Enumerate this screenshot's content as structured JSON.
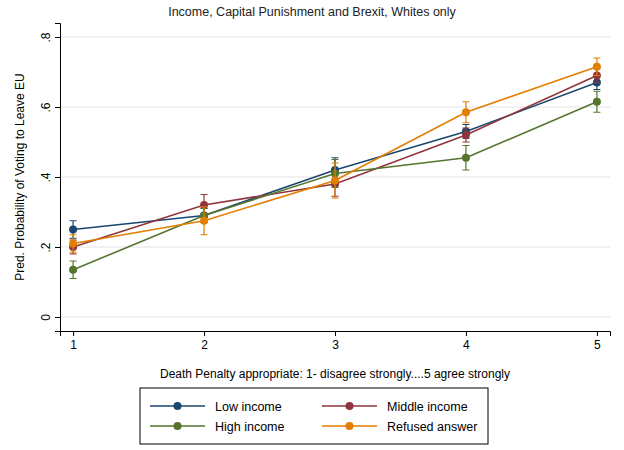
{
  "chart_data": {
    "type": "line",
    "title": "Income, Capital Punishment and Brexit, Whites only",
    "x_label": "Death Penalty appropriate: 1- disagree strongly....5 agree strongly",
    "y_label": "Pred. Probability of Voting to Leave EU",
    "x": [
      1,
      2,
      3,
      4,
      5
    ],
    "xlim": [
      0.9,
      5.1
    ],
    "xticks": [
      1,
      2,
      3,
      4,
      5
    ],
    "ylim": [
      -0.04,
      0.84
    ],
    "yticks": [
      0,
      {
        "value": 0.2,
        "label": ".2"
      },
      {
        "value": 0.4,
        "label": ".4"
      },
      {
        "value": 0.6,
        "label": ".6"
      },
      {
        "value": 0.8,
        "label": ".8"
      }
    ],
    "grid": true,
    "legend": "bottom",
    "marker": "circle",
    "line_style": "solid",
    "series": [
      {
        "name": "Low income",
        "color": "#1a476f",
        "values": [
          0.25,
          0.29,
          0.42,
          0.53,
          0.67
        ],
        "errors": [
          0.025,
          0.02,
          0.035,
          0.02,
          0.02
        ]
      },
      {
        "name": "Middle income",
        "color": "#90353b",
        "values": [
          0.2,
          0.32,
          0.38,
          0.52,
          0.69
        ],
        "errors": [
          0.02,
          0.03,
          0.035,
          0.02,
          0.02
        ]
      },
      {
        "name": "High income",
        "color": "#55752f",
        "values": [
          0.135,
          0.29,
          0.41,
          0.455,
          0.615
        ],
        "errors": [
          0.025,
          0.02,
          0.04,
          0.035,
          0.03
        ]
      },
      {
        "name": "Refused answer",
        "color": "#e37e00",
        "values": [
          0.21,
          0.275,
          0.39,
          0.585,
          0.715
        ],
        "errors": [
          0.025,
          0.04,
          0.05,
          0.03,
          0.025
        ]
      }
    ]
  }
}
